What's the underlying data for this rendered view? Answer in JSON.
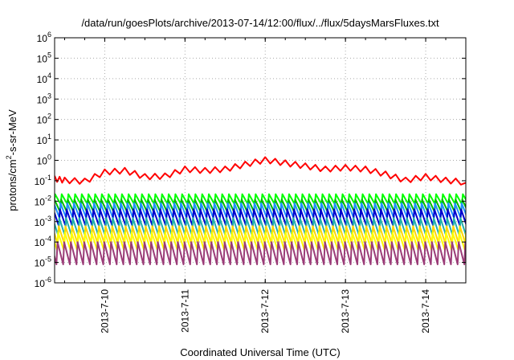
{
  "chart_data": {
    "type": "line",
    "title": "/data/run/goesPlots/archive/2013-07-14/12:00/flux/../flux/5daysMarsFluxes.txt",
    "xlabel": "Coordinated Universal Time (UTC)",
    "ylabel": {
      "base": "protons/cm",
      "sup": "2",
      "rest": "-s-sr-MeV"
    },
    "y_scale": "log",
    "ylim_exponents": [
      -6,
      6
    ],
    "y_ticks": [
      {
        "base": "10",
        "exp": "-6"
      },
      {
        "base": "10",
        "exp": "-5"
      },
      {
        "base": "10",
        "exp": "-4"
      },
      {
        "base": "10",
        "exp": "-3"
      },
      {
        "base": "10",
        "exp": "-2"
      },
      {
        "base": "10",
        "exp": "-1"
      },
      {
        "base": "10",
        "exp": "0"
      },
      {
        "base": "10",
        "exp": "1"
      },
      {
        "base": "10",
        "exp": "2"
      },
      {
        "base": "10",
        "exp": "3"
      },
      {
        "base": "10",
        "exp": "4"
      },
      {
        "base": "10",
        "exp": "5"
      },
      {
        "base": "10",
        "exp": "6"
      }
    ],
    "xlim": [
      "2013-07-09T09:00",
      "2013-07-14T12:00"
    ],
    "x_ticks": [
      {
        "date": "2013-07-10T00:00",
        "label": "2013-7-10"
      },
      {
        "date": "2013-07-11T00:00",
        "label": "2013-7-11"
      },
      {
        "date": "2013-07-12T00:00",
        "label": "2013-7-12"
      },
      {
        "date": "2013-07-13T00:00",
        "label": "2013-7-13"
      },
      {
        "date": "2013-07-14T00:00",
        "label": "2013-7-14"
      }
    ],
    "grid": true,
    "series": [
      {
        "color": "#ff0000",
        "pattern": "smooth",
        "x": [
          "2013-07-09T09:00",
          "2013-07-09T12:00",
          "2013-07-09T18:00",
          "2013-07-10T00:00",
          "2013-07-10T06:00",
          "2013-07-10T12:00",
          "2013-07-10T18:00",
          "2013-07-11T00:00",
          "2013-07-11T06:00",
          "2013-07-11T12:00",
          "2013-07-11T18:00",
          "2013-07-12T00:00",
          "2013-07-12T06:00",
          "2013-07-12T12:00",
          "2013-07-12T18:00",
          "2013-07-13T00:00",
          "2013-07-13T06:00",
          "2013-07-13T12:00",
          "2013-07-13T18:00",
          "2013-07-14T00:00",
          "2013-07-14T06:00",
          "2013-07-14T12:00"
        ],
        "values": [
          0.12,
          0.1,
          0.09,
          0.25,
          0.3,
          0.15,
          0.16,
          0.35,
          0.3,
          0.35,
          0.6,
          1.0,
          0.7,
          0.5,
          0.35,
          0.42,
          0.35,
          0.2,
          0.1,
          0.15,
          0.1,
          0.08
        ]
      },
      {
        "color": "#00ff00",
        "pattern": "sawtooth",
        "peak": 0.022,
        "trough": 0.007
      },
      {
        "color": "#00bb00",
        "pattern": "sawtooth",
        "peak": 0.012,
        "trough": 0.003
      },
      {
        "color": "#1e90ff",
        "pattern": "sawtooth",
        "peak": 0.008,
        "trough": 0.0015
      },
      {
        "color": "#0000cd",
        "pattern": "sawtooth",
        "peak": 0.004,
        "trough": 0.0006
      },
      {
        "color": "#20b2aa",
        "pattern": "sawtooth",
        "peak": 0.0015,
        "trough": 0.0002
      },
      {
        "color": "#ffd700",
        "pattern": "sawtooth",
        "peak": 0.0006,
        "trough": 8e-05
      },
      {
        "color": "#ffff00",
        "pattern": "sawtooth",
        "peak": 0.0003,
        "trough": 4e-05
      },
      {
        "color": "#9b3c78",
        "pattern": "sawtooth",
        "peak": 0.0001,
        "trough": 8e-06
      }
    ]
  }
}
